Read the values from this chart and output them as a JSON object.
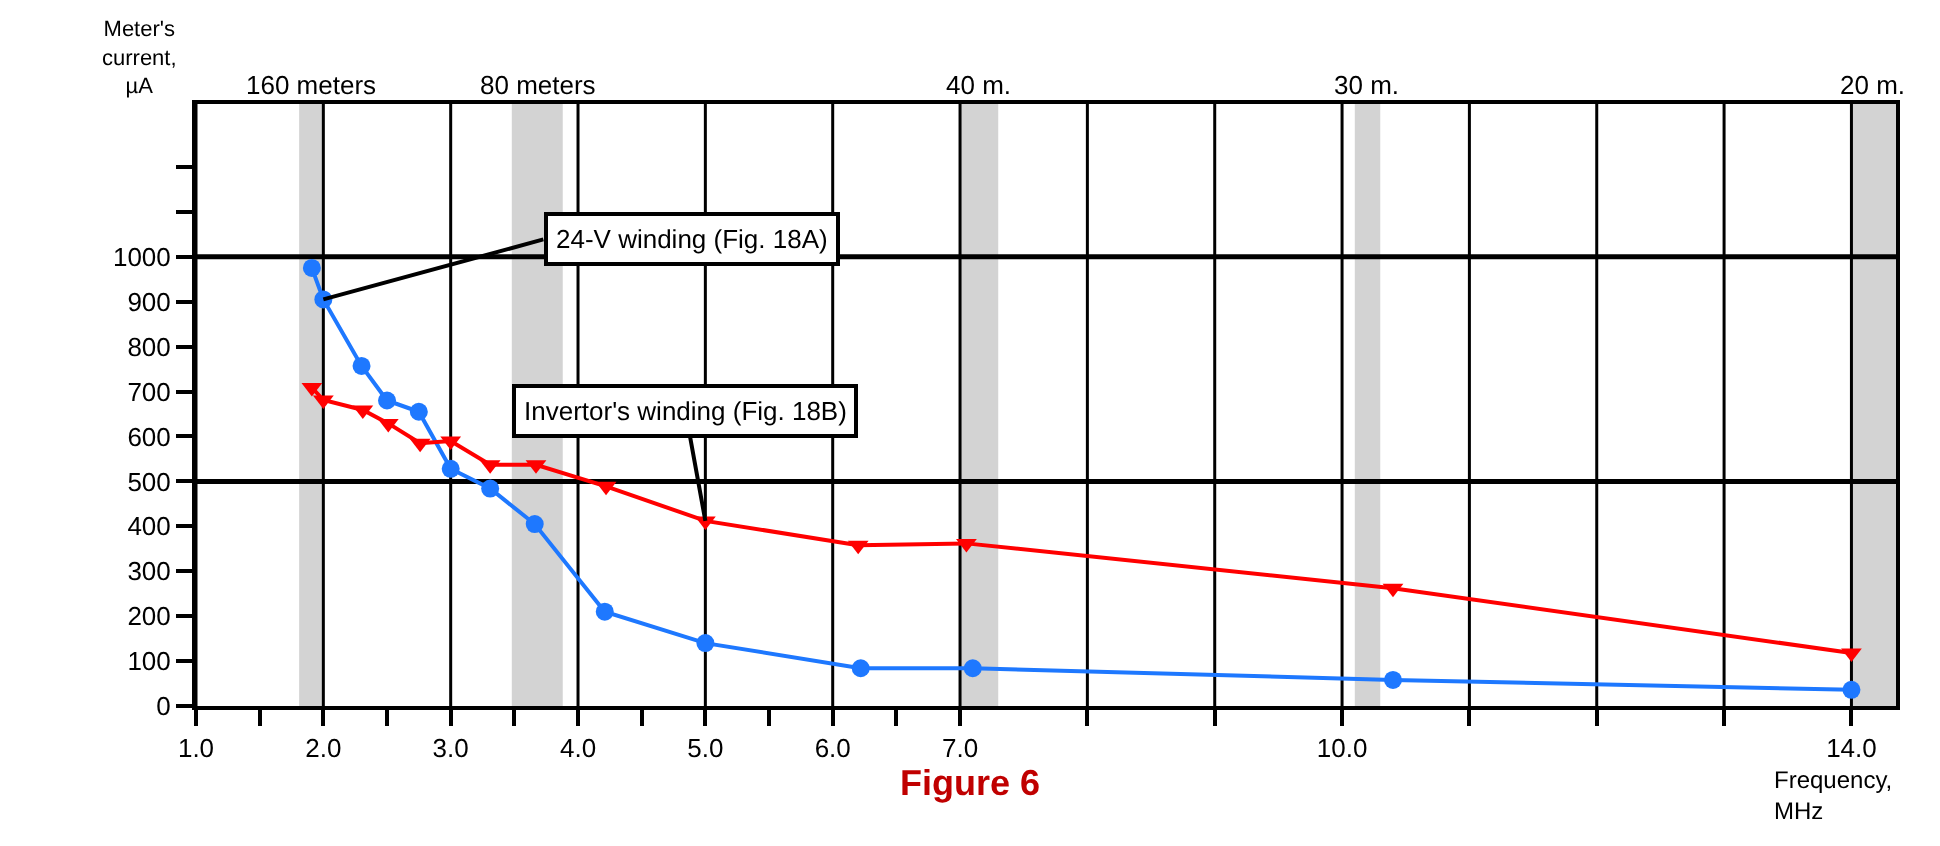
{
  "chart_data": {
    "type": "line",
    "title": "Figure 6",
    "xlabel": "Frequency, MHz",
    "ylabel": "Meter's current, µA",
    "series": [
      {
        "name": "24-V winding (Fig. 18A)",
        "color": "#1e78ff",
        "marker": "circle",
        "x": [
          1.91,
          2.0,
          2.3,
          2.5,
          2.75,
          3.0,
          3.31,
          3.66,
          4.21,
          5.0,
          6.22,
          7.1,
          10.4,
          14.0
        ],
        "values": [
          975,
          905,
          757,
          680,
          655,
          528,
          484,
          405,
          210,
          140,
          84,
          84,
          58,
          36
        ]
      },
      {
        "name": "Invertor's winding (Fig. 18B)",
        "color": "#ff0000",
        "marker": "triangle",
        "x": [
          1.91,
          2.0,
          2.31,
          2.51,
          2.76,
          3.0,
          3.31,
          3.67,
          4.22,
          5.0,
          6.2,
          7.05,
          10.4,
          14.0
        ],
        "values": [
          709,
          681,
          659,
          629,
          585,
          590,
          537,
          537,
          489,
          412,
          358,
          362,
          262,
          118
        ]
      }
    ],
    "xlim": [
      1.0,
      14.35
    ],
    "ylim": [
      0,
      1340
    ],
    "xticks": [
      {
        "value": 1,
        "label": "1.0"
      },
      {
        "value": 1.5,
        "label": null
      },
      {
        "value": 2,
        "label": "2.0"
      },
      {
        "value": 2.5,
        "label": null
      },
      {
        "value": 3,
        "label": "3.0"
      },
      {
        "value": 3.5,
        "label": null
      },
      {
        "value": 4,
        "label": "4.0"
      },
      {
        "value": 4.5,
        "label": null
      },
      {
        "value": 5,
        "label": "5.0"
      },
      {
        "value": 5.5,
        "label": null
      },
      {
        "value": 6,
        "label": "6.0"
      },
      {
        "value": 6.5,
        "label": null
      },
      {
        "value": 7,
        "label": "7.0"
      },
      {
        "value": 8,
        "label": null
      },
      {
        "value": 9,
        "label": null
      },
      {
        "value": 10,
        "label": "10.0"
      },
      {
        "value": 11,
        "label": null
      },
      {
        "value": 12,
        "label": null
      },
      {
        "value": 13,
        "label": null
      },
      {
        "value": 14,
        "label": "14.0"
      }
    ],
    "yticks": [
      0,
      100,
      200,
      300,
      400,
      500,
      600,
      700,
      800,
      900,
      1000,
      {
        "value": 1100,
        "label": null
      },
      {
        "value": 1200,
        "label": null
      }
    ],
    "grid": "x",
    "legend": false,
    "ref_lines": [
      {
        "axis": "y",
        "value": 500,
        "color": "#000000"
      },
      {
        "axis": "y",
        "value": 1000,
        "color": "#000000"
      }
    ],
    "bands": [
      {
        "axis": "x",
        "from": 1.81,
        "to": 2.0,
        "label": "160 meters",
        "color": "#d3d3d3"
      },
      {
        "axis": "x",
        "from": 3.48,
        "to": 3.88,
        "label": "80 meters",
        "color": "#d3d3d3"
      },
      {
        "axis": "x",
        "from": 7.0,
        "to": 7.3,
        "label": "40 m.",
        "color": "#d3d3d3"
      },
      {
        "axis": "x",
        "from": 10.1,
        "to": 10.3,
        "label": "30 m.",
        "color": "#d3d3d3"
      },
      {
        "axis": "x",
        "from": 14.0,
        "to": 14.35,
        "label": "20 m.",
        "color": "#d3d3d3"
      }
    ]
  }
}
